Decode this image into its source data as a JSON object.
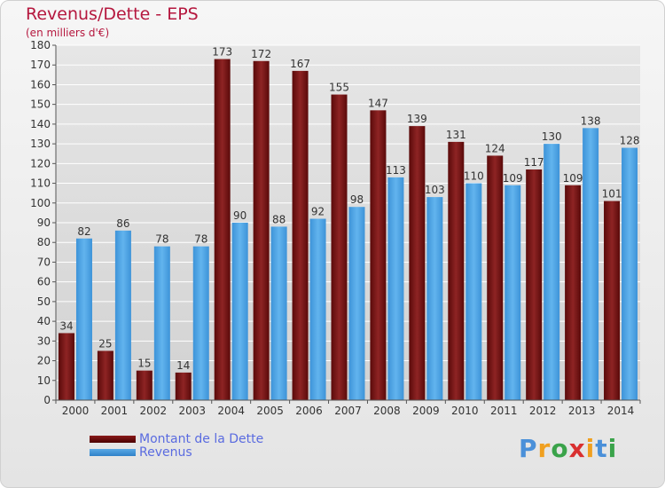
{
  "header": {
    "title": "Revenus/Dette - EPS",
    "subtitle": "(en milliers d'€)"
  },
  "legend": {
    "debt_label": "Montant de la Dette",
    "revenue_label": "Revenus"
  },
  "logo": {
    "text": "Proxiti",
    "letters": [
      "P",
      "r",
      "o",
      "x",
      "i",
      "t",
      "i"
    ],
    "colors": [
      "#4a90d9",
      "#f0a020",
      "#3aa34a",
      "#d93030",
      "#f0a020",
      "#4a90d9",
      "#3aa34a"
    ]
  },
  "colors": {
    "debt": "#7a1414",
    "revenue": "#4aa3e8",
    "grid": "#ffffff",
    "axis_text": "#333333"
  },
  "chart_data": {
    "type": "bar",
    "categories": [
      "2000",
      "2001",
      "2002",
      "2003",
      "2004",
      "2005",
      "2006",
      "2007",
      "2008",
      "2009",
      "2010",
      "2011",
      "2012",
      "2013",
      "2014"
    ],
    "series": [
      {
        "name": "Montant de la Dette",
        "values": [
          34,
          25,
          15,
          14,
          173,
          172,
          167,
          155,
          147,
          139,
          131,
          124,
          117,
          109,
          101
        ]
      },
      {
        "name": "Revenus",
        "values": [
          82,
          86,
          78,
          78,
          90,
          88,
          92,
          98,
          113,
          103,
          110,
          109,
          130,
          138,
          128
        ]
      }
    ],
    "yticks": [
      0,
      10,
      20,
      30,
      40,
      50,
      60,
      70,
      80,
      90,
      100,
      110,
      120,
      130,
      140,
      150,
      160,
      170,
      180
    ],
    "ylim": [
      0,
      180
    ],
    "grid": true,
    "legend_position": "bottom-left"
  }
}
